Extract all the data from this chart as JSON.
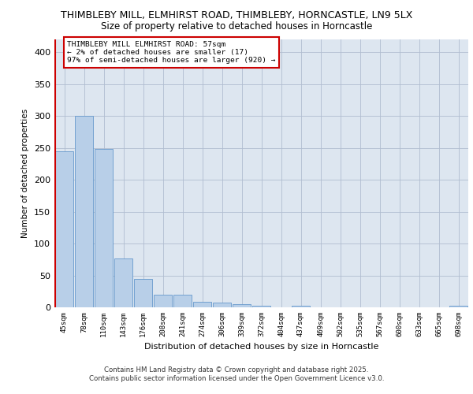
{
  "title_line1": "THIMBLEBY MILL, ELMHIRST ROAD, THIMBLEBY, HORNCASTLE, LN9 5LX",
  "title_line2": "Size of property relative to detached houses in Horncastle",
  "xlabel": "Distribution of detached houses by size in Horncastle",
  "ylabel": "Number of detached properties",
  "categories": [
    "45sqm",
    "78sqm",
    "110sqm",
    "143sqm",
    "176sqm",
    "208sqm",
    "241sqm",
    "274sqm",
    "306sqm",
    "339sqm",
    "372sqm",
    "404sqm",
    "437sqm",
    "469sqm",
    "502sqm",
    "535sqm",
    "567sqm",
    "600sqm",
    "633sqm",
    "665sqm",
    "698sqm"
  ],
  "values": [
    245,
    300,
    248,
    77,
    45,
    20,
    20,
    9,
    7,
    5,
    3,
    0,
    3,
    0,
    0,
    0,
    0,
    0,
    0,
    0,
    3
  ],
  "bar_color": "#b8cfe8",
  "bar_edge_color": "#6699cc",
  "highlight_line_color": "#cc0000",
  "background_color": "#ffffff",
  "axes_background": "#dde6f0",
  "grid_color": "#b0bdd0",
  "ylim": [
    0,
    420
  ],
  "yticks": [
    0,
    50,
    100,
    150,
    200,
    250,
    300,
    350,
    400
  ],
  "annotation_text": "THIMBLEBY MILL ELMHIRST ROAD: 57sqm\n← 2% of detached houses are smaller (17)\n97% of semi-detached houses are larger (920) →",
  "annotation_box_color": "#ffffff",
  "annotation_box_edge_color": "#cc0000",
  "footer_line1": "Contains HM Land Registry data © Crown copyright and database right 2025.",
  "footer_line2": "Contains public sector information licensed under the Open Government Licence v3.0."
}
